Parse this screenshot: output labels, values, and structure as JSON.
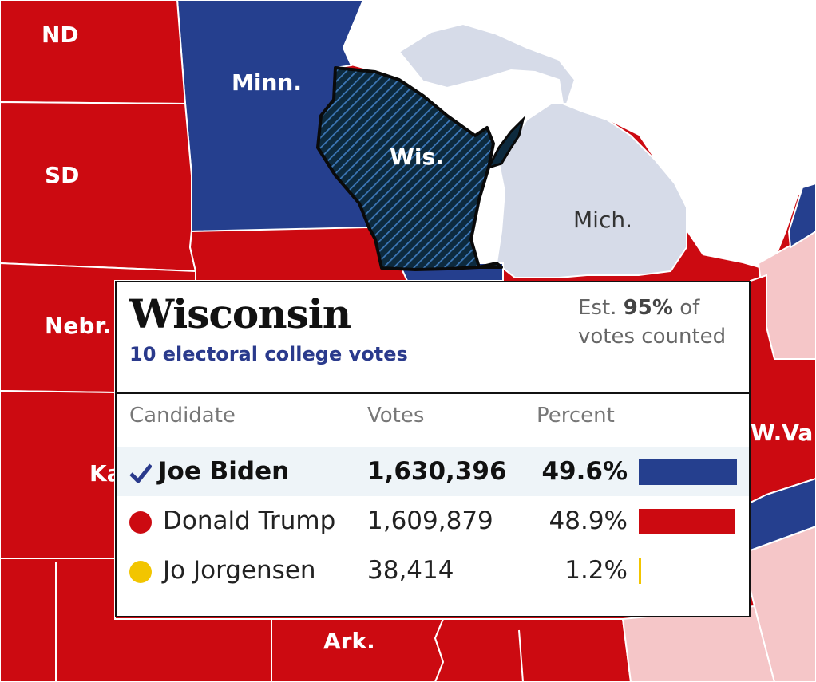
{
  "map": {
    "states": [
      {
        "abbr": "ND",
        "party": "rep"
      },
      {
        "abbr": "SD",
        "party": "rep"
      },
      {
        "abbr": "Nebr.",
        "party": "rep"
      },
      {
        "abbr": "Minn.",
        "party": "dem"
      },
      {
        "abbr": "Wis.",
        "party": "dem",
        "selected": true
      },
      {
        "abbr": "Mich.",
        "party": "undecided"
      },
      {
        "abbr": "W.Va.",
        "party": "rep"
      },
      {
        "abbr": "Ark.",
        "party": "rep"
      },
      {
        "abbr": "Ka",
        "party": "rep"
      }
    ],
    "colors": {
      "rep": "#cc0a11",
      "rep_lean": "#f5c6c8",
      "dem": "#253f8e",
      "undecided": "#d6dbe8",
      "water": "#ffffff",
      "border": "#ffffff",
      "selected_stripe": "#3d78b8",
      "selected_fill": "#0d2a3e"
    }
  },
  "popup": {
    "state_name": "Wisconsin",
    "electoral_votes": "10 electoral college votes",
    "est_prefix": "Est. ",
    "est_pct": "95%",
    "est_suffix": " of votes counted",
    "headers": {
      "candidate": "Candidate",
      "votes": "Votes",
      "percent": "Percent"
    },
    "candidates": [
      {
        "name": "Joe Biden",
        "votes": "1,630,396",
        "percent_label": "49.6%",
        "percent": 49.6,
        "color": "#253f8e",
        "winner": true
      },
      {
        "name": "Donald Trump",
        "votes": "1,609,879",
        "percent_label": "48.9%",
        "percent": 48.9,
        "color": "#cc0a11",
        "winner": false
      },
      {
        "name": "Jo Jorgensen",
        "votes": "38,414",
        "percent_label": "1.2%",
        "percent": 1.2,
        "color": "#f2c500",
        "winner": false
      }
    ]
  }
}
